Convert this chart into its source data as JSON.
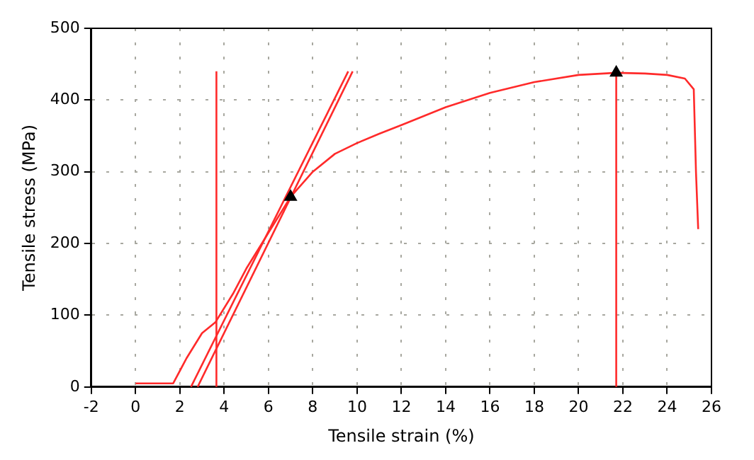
{
  "chart_data": {
    "type": "line",
    "xlabel": "Tensile strain (%)",
    "ylabel": "Tensile stress (MPa)",
    "xlim": [
      -2,
      26
    ],
    "ylim": [
      0,
      500
    ],
    "xticks": [
      -2,
      0,
      2,
      4,
      6,
      8,
      10,
      12,
      14,
      16,
      18,
      20,
      22,
      24,
      26
    ],
    "yticks": [
      0,
      100,
      200,
      300,
      400,
      500
    ],
    "grid": true,
    "legend": false,
    "marker": "none",
    "line_style": "solid",
    "series": [
      {
        "color": "#ff2a2a",
        "x": [
          0,
          1.7,
          2.3,
          3,
          3.6,
          4.4,
          5,
          6,
          7,
          8,
          9,
          10,
          11,
          12,
          14,
          16,
          18,
          20,
          21.7,
          23,
          24,
          24.8,
          25.2,
          25.3,
          25.4
        ],
        "values": [
          5,
          5,
          40,
          75,
          90,
          130,
          165,
          215,
          265,
          300,
          325,
          340,
          353,
          365,
          390,
          410,
          425,
          435,
          438,
          437,
          435,
          430,
          415,
          300,
          220
        ]
      },
      {
        "color": "#ff2a2a",
        "x": [
          2.5,
          9.6
        ],
        "values": [
          0,
          440
        ]
      },
      {
        "color": "#ff2a2a",
        "x": [
          2.8,
          9.8
        ],
        "values": [
          0,
          440
        ]
      },
      {
        "color": "#ff2a2a",
        "x": [
          3.65,
          3.65
        ],
        "values": [
          0,
          440
        ]
      },
      {
        "color": "#ff2a2a",
        "x": [
          21.7,
          21.7
        ],
        "values": [
          0,
          438
        ]
      },
      {
        "type": "scatter",
        "color": "#000000",
        "marker": "triangle",
        "x": [
          7,
          21.7
        ],
        "values": [
          265,
          438
        ]
      }
    ]
  }
}
